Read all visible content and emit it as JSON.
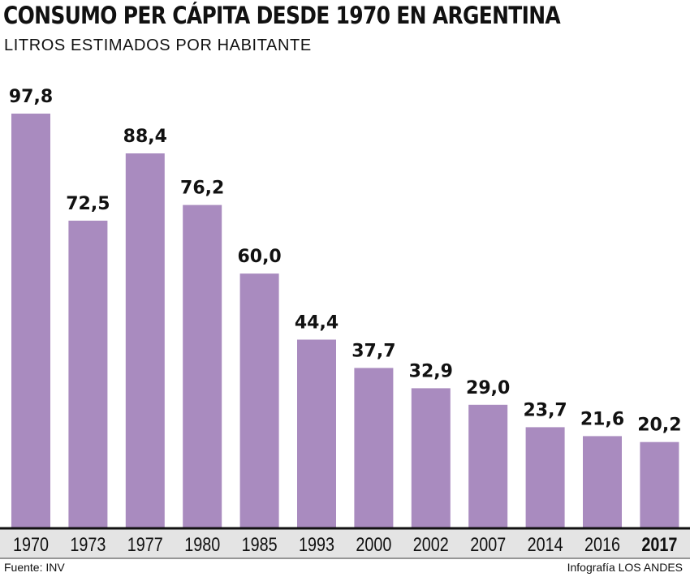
{
  "chart_data": {
    "type": "bar",
    "title": "CONSUMO PER CÁPITA DESDE 1970 EN ARGENTINA",
    "subtitle": "LITROS ESTIMADOS POR HABITANTE",
    "categories": [
      "1970",
      "1973",
      "1977",
      "1980",
      "1985",
      "1993",
      "2000",
      "2002",
      "2007",
      "2014",
      "2016",
      "2017"
    ],
    "values": [
      97.8,
      72.5,
      88.4,
      76.2,
      60.0,
      44.4,
      37.7,
      32.9,
      29.0,
      23.7,
      21.6,
      20.2
    ],
    "value_labels": [
      "97,8",
      "72,5",
      "88,4",
      "76,2",
      "60,0",
      "44,4",
      "37,7",
      "32,9",
      "29,0",
      "23,7",
      "21,6",
      "20,2"
    ],
    "highlighted_category": "2017",
    "xlabel": "",
    "ylabel": "",
    "ylim": [
      0,
      97.8
    ],
    "grid": false,
    "legend": "none",
    "colors": {
      "bar": "#A98BBF",
      "axis_band": "#E4E4E4",
      "axis_line": "#111111",
      "text": "#111111"
    }
  },
  "footer": {
    "source": "Fuente: INV",
    "credit": "Infografía LOS ANDES"
  }
}
